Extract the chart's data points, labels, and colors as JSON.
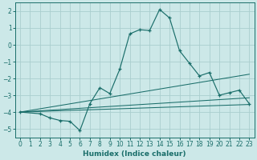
{
  "xlabel": "Humidex (Indice chaleur)",
  "bg_color": "#cce8e8",
  "grid_color": "#aacece",
  "line_color": "#1a6e6a",
  "xlim": [
    -0.5,
    23.5
  ],
  "ylim": [
    -5.5,
    2.5
  ],
  "yticks": [
    -5,
    -4,
    -3,
    -2,
    -1,
    0,
    1,
    2
  ],
  "xticks": [
    0,
    1,
    2,
    3,
    4,
    5,
    6,
    7,
    8,
    9,
    10,
    11,
    12,
    13,
    14,
    15,
    16,
    17,
    18,
    19,
    20,
    21,
    22,
    23
  ],
  "main_x": [
    0,
    2,
    3,
    4,
    5,
    6,
    7,
    8,
    9,
    10,
    11,
    12,
    13,
    14,
    15,
    16,
    17,
    18,
    19,
    20,
    21,
    22,
    23
  ],
  "main_y": [
    -4.0,
    -4.1,
    -4.35,
    -4.5,
    -4.55,
    -5.1,
    -3.5,
    -2.55,
    -2.9,
    -1.45,
    0.65,
    0.9,
    0.85,
    2.1,
    1.6,
    -0.35,
    -1.1,
    -1.85,
    -1.65,
    -3.0,
    -2.85,
    -2.7,
    -3.5
  ],
  "line1_x": [
    0,
    23
  ],
  "line1_y": [
    -4.0,
    -3.55
  ],
  "line2_x": [
    0,
    23
  ],
  "line2_y": [
    -4.0,
    -1.75
  ],
  "line3_x": [
    0,
    23
  ],
  "line3_y": [
    -4.0,
    -3.15
  ]
}
